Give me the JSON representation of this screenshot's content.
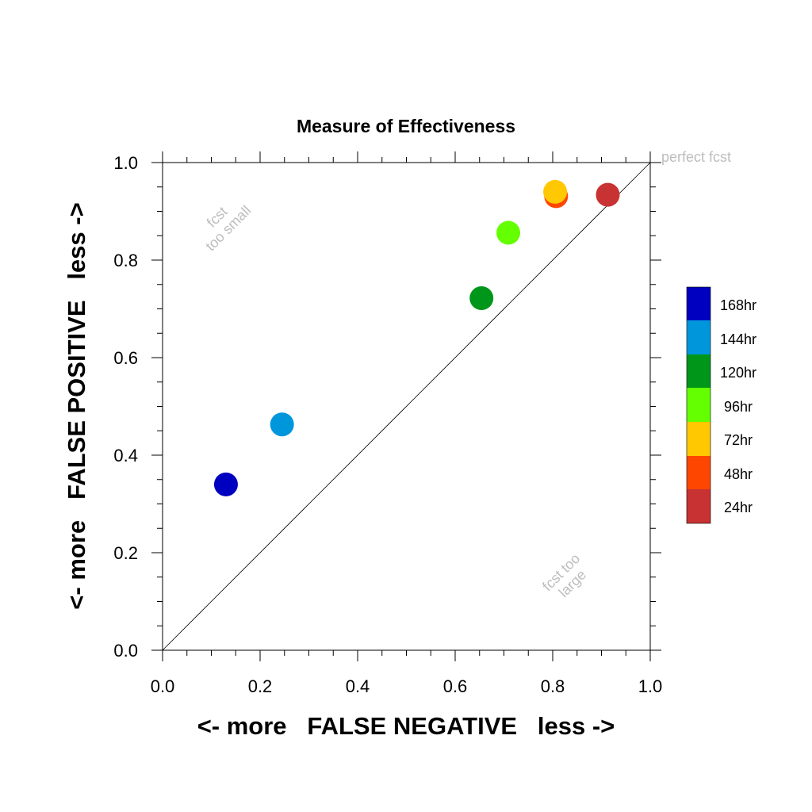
{
  "chart_data": {
    "type": "scatter",
    "title": "Measure of Effectiveness",
    "xlabel": "<- more   FALSE NEGATIVE   less ->",
    "ylabel": "<- more   FALSE POSITIVE   less ->",
    "xlim": [
      0.0,
      1.0
    ],
    "ylim": [
      0.0,
      1.0
    ],
    "x_ticks": [
      "0.0",
      "0.2",
      "0.4",
      "0.6",
      "0.8",
      "1.0"
    ],
    "y_ticks": [
      "0.0",
      "0.2",
      "0.4",
      "0.6",
      "0.8",
      "1.0"
    ],
    "grid": false,
    "diagonal_line": true,
    "annotations": {
      "perfect": "perfect fcst",
      "too_small_1": "fcst",
      "too_small_2": "too small",
      "too_large_1": "fcst too",
      "too_large_2": "large"
    },
    "legend_position": "right",
    "series": [
      {
        "name": "168hr",
        "color": "#0000c0",
        "x": 0.13,
        "y": 0.34
      },
      {
        "name": "144hr",
        "color": "#0096dc",
        "x": 0.245,
        "y": 0.463
      },
      {
        "name": "120hr",
        "color": "#009619",
        "x": 0.654,
        "y": 0.722
      },
      {
        "name": "96hr",
        "color": "#64ff00",
        "x": 0.709,
        "y": 0.856
      },
      {
        "name": "72hr",
        "color": "#ffc800",
        "x": 0.805,
        "y": 0.94
      },
      {
        "name": "48hr",
        "color": "#ff4600",
        "x": 0.807,
        "y": 0.931
      },
      {
        "name": "24hr",
        "color": "#c83232",
        "x": 0.913,
        "y": 0.934
      }
    ],
    "draw_order": [
      6,
      5,
      4,
      3,
      2,
      1,
      0
    ]
  }
}
